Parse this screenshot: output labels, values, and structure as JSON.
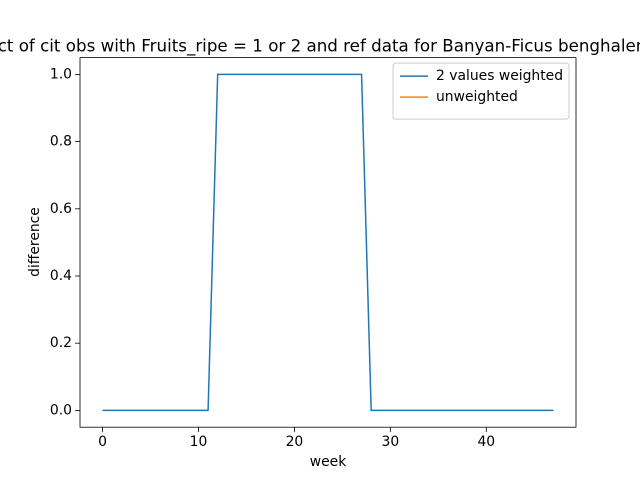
{
  "chart_data": {
    "type": "line",
    "title": "ct of cit obs with Fruits_ripe = 1 or 2 and ref data for Banyan-Ficus benghalen",
    "x_label": "week",
    "y_label": "difference",
    "x": [
      0,
      1,
      2,
      3,
      4,
      5,
      6,
      7,
      8,
      9,
      10,
      11,
      12,
      13,
      14,
      15,
      16,
      17,
      18,
      19,
      20,
      21,
      22,
      23,
      24,
      25,
      26,
      27,
      28,
      29,
      30,
      31,
      32,
      33,
      34,
      35,
      36,
      37,
      38,
      39,
      40,
      41,
      42,
      43,
      44,
      45,
      46,
      47
    ],
    "series": [
      {
        "name": "2 values weighted",
        "color": "#1f77b4",
        "values": [
          0,
          0,
          0,
          0,
          0,
          0,
          0,
          0,
          0,
          0,
          0,
          0,
          1,
          1,
          1,
          1,
          1,
          1,
          1,
          1,
          1,
          1,
          1,
          1,
          1,
          1,
          1,
          1,
          0,
          0,
          0,
          0,
          0,
          0,
          0,
          0,
          0,
          0,
          0,
          0,
          0,
          0,
          0,
          0,
          0,
          0,
          0,
          0
        ]
      },
      {
        "name": "unweighted",
        "color": "#ff7f0e",
        "values": [
          null,
          null,
          null,
          null,
          null,
          null,
          null,
          null,
          null,
          null,
          null,
          null,
          null,
          null,
          null,
          null,
          null,
          null,
          null,
          null,
          null,
          null,
          null,
          null,
          null,
          null,
          null,
          null,
          null,
          null,
          null,
          null,
          null,
          null,
          null,
          null,
          null,
          null,
          null,
          null,
          null,
          null,
          null,
          null,
          null,
          null,
          null,
          null
        ]
      }
    ],
    "xlim": [
      -2.35,
      49.35
    ],
    "xticks": [
      0,
      10,
      20,
      30,
      40
    ],
    "ylim": [
      -0.05,
      1.05
    ],
    "yticks": [
      {
        "value": 0,
        "label": "0.0"
      },
      0.2,
      0.4,
      0.6,
      0.8,
      {
        "value": 1,
        "label": "1.0"
      }
    ],
    "legend": "upper right",
    "grid": false
  }
}
